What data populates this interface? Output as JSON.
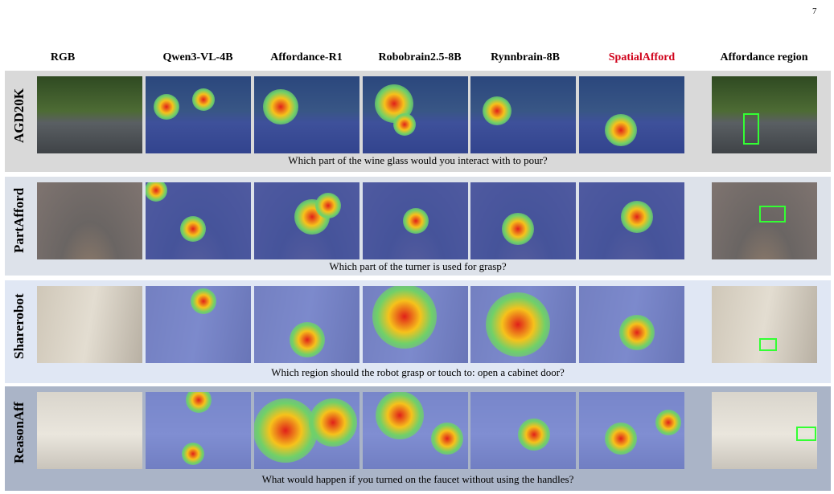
{
  "page_number": "7",
  "headers": [
    "RGB",
    "Qwen3-VL-4B",
    "Affordance-R1",
    "Robobrain2.5-8B",
    "Rynnbrain-8B",
    "SpatialAfford",
    "Affordance region"
  ],
  "rows": [
    {
      "label": "AGD20K",
      "caption": "Which part of the wine glass would you interact with to pour?"
    },
    {
      "label": "PartAfford",
      "caption": "Which part of the turner is used for grasp?"
    },
    {
      "label": "Sharerobot",
      "caption": "Which region should the robot grasp or touch to: open a cabinet door?"
    },
    {
      "label": "ReasonAff",
      "caption": "What would happen if you turned on the faucet without using the handles?"
    }
  ]
}
